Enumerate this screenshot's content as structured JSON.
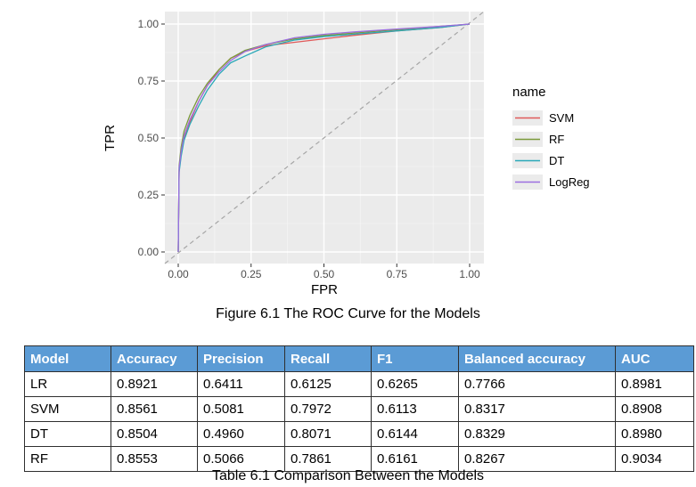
{
  "figure": {
    "caption": "Figure 6.1 The ROC Curve for the Models"
  },
  "chart_data": {
    "type": "line",
    "xlabel": "FPR",
    "ylabel": "TPR",
    "xlim": [
      0,
      1
    ],
    "ylim": [
      0,
      1
    ],
    "x_ticks": [
      "0.00",
      "0.25",
      "0.50",
      "0.75",
      "1.00"
    ],
    "y_ticks": [
      "0.00",
      "0.25",
      "0.50",
      "0.75",
      "1.00"
    ],
    "grid": true,
    "background": "#ebebeb",
    "legend": {
      "title": "name",
      "placement": "right"
    },
    "diagonal": {
      "style": "dashed",
      "color": "#a6a6a6",
      "from": [
        0,
        0
      ],
      "to": [
        1,
        1
      ]
    },
    "series": [
      {
        "name": "SVM",
        "color": "#e05a5a",
        "x": [
          0,
          0.003,
          0.01,
          0.02,
          0.04,
          0.07,
          0.1,
          0.14,
          0.18,
          0.23,
          0.3,
          0.4,
          0.5,
          0.6,
          0.75,
          0.9,
          1.0
        ],
        "y": [
          0,
          0.36,
          0.43,
          0.5,
          0.57,
          0.66,
          0.73,
          0.8,
          0.85,
          0.88,
          0.905,
          0.92,
          0.935,
          0.95,
          0.97,
          0.985,
          1.0
        ]
      },
      {
        "name": "RF",
        "color": "#7a9a3a",
        "x": [
          0,
          0.003,
          0.01,
          0.02,
          0.04,
          0.07,
          0.1,
          0.14,
          0.18,
          0.23,
          0.3,
          0.4,
          0.5,
          0.6,
          0.75,
          0.9,
          1.0
        ],
        "y": [
          0,
          0.38,
          0.46,
          0.53,
          0.6,
          0.68,
          0.74,
          0.8,
          0.85,
          0.885,
          0.91,
          0.935,
          0.95,
          0.96,
          0.975,
          0.99,
          1.0
        ]
      },
      {
        "name": "DT",
        "color": "#2aa8b8",
        "x": [
          0,
          0.003,
          0.01,
          0.02,
          0.04,
          0.07,
          0.1,
          0.14,
          0.18,
          0.23,
          0.3,
          0.4,
          0.5,
          0.6,
          0.75,
          0.9,
          1.0
        ],
        "y": [
          0,
          0.35,
          0.42,
          0.49,
          0.56,
          0.64,
          0.71,
          0.78,
          0.83,
          0.86,
          0.9,
          0.93,
          0.945,
          0.955,
          0.97,
          0.985,
          1.0
        ]
      },
      {
        "name": "LogReg",
        "color": "#9b6ee0",
        "x": [
          0,
          0.003,
          0.01,
          0.02,
          0.04,
          0.07,
          0.1,
          0.14,
          0.18,
          0.23,
          0.3,
          0.4,
          0.5,
          0.6,
          0.75,
          0.9,
          1.0
        ],
        "y": [
          0,
          0.37,
          0.44,
          0.51,
          0.58,
          0.66,
          0.73,
          0.79,
          0.84,
          0.88,
          0.91,
          0.94,
          0.955,
          0.965,
          0.978,
          0.99,
          1.0
        ]
      }
    ]
  },
  "table": {
    "caption": "Table 6.1 Comparison Between the Models",
    "header_color": "#5b9bd5",
    "columns": [
      "Model",
      "Accuracy",
      "Precision",
      "Recall",
      "F1",
      "Balanced accuracy",
      "AUC"
    ],
    "rows": [
      [
        "LR",
        "0.8921",
        "0.6411",
        "0.6125",
        "0.6265",
        "0.7766",
        "0.8981"
      ],
      [
        "SVM",
        "0.8561",
        "0.5081",
        "0.7972",
        "0.6113",
        "0.8317",
        "0.8908"
      ],
      [
        "DT",
        "0.8504",
        "0.4960",
        "0.8071",
        "0.6144",
        "0.8329",
        "0.8980"
      ],
      [
        "RF",
        "0.8553",
        "0.5066",
        "0.7861",
        "0.6161",
        "0.8267",
        "0.9034"
      ]
    ]
  }
}
